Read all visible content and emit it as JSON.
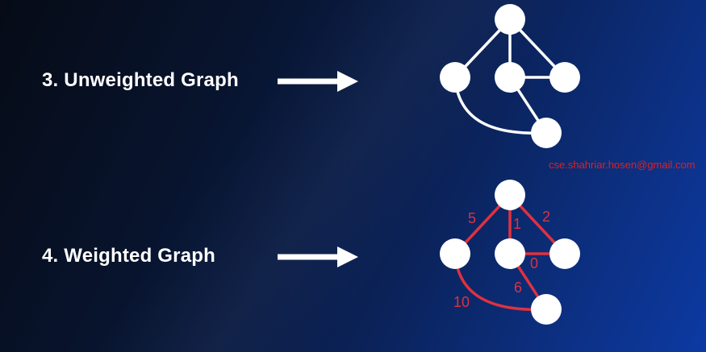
{
  "section_unweighted": {
    "label": "3. Unweighted Graph"
  },
  "section_weighted": {
    "label": "4. Weighted Graph",
    "weights": {
      "top_left": "5",
      "top_center": "1",
      "top_right": "2",
      "center_right": "0",
      "center_bottom": "6",
      "left_bottom": "10"
    }
  },
  "watermark": "cse.shahriar.hosen@gmail.com",
  "colors": {
    "edge_unweighted": "#ffffff",
    "edge_weighted": "#e0313f",
    "watermark": "#e0201e"
  }
}
